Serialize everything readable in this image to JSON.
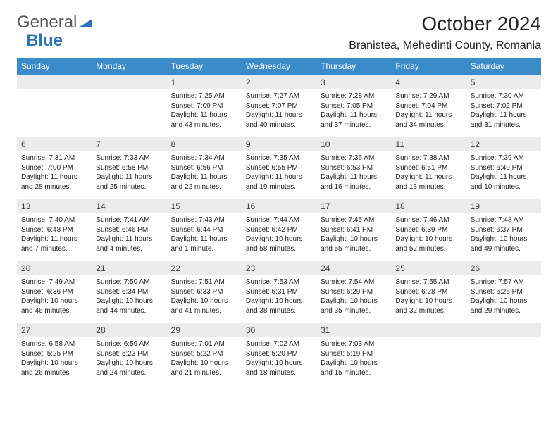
{
  "logo": {
    "part1": "General",
    "part2": "Blue"
  },
  "title": "October 2024",
  "location": "Branistea, Mehedinti County, Romania",
  "colors": {
    "header_bg": "#3b8bc8",
    "header_text": "#ffffff",
    "row_border": "#3b6f96",
    "daynum_bg": "#ececec",
    "logo_general": "#5a5a5a",
    "logo_blue": "#2b74b8",
    "text": "#222222"
  },
  "weekdays": [
    "Sunday",
    "Monday",
    "Tuesday",
    "Wednesday",
    "Thursday",
    "Friday",
    "Saturday"
  ],
  "weeks": [
    [
      null,
      null,
      {
        "d": "1",
        "sr": "7:25 AM",
        "ss": "7:09 PM",
        "dl": "11 hours and 43 minutes."
      },
      {
        "d": "2",
        "sr": "7:27 AM",
        "ss": "7:07 PM",
        "dl": "11 hours and 40 minutes."
      },
      {
        "d": "3",
        "sr": "7:28 AM",
        "ss": "7:05 PM",
        "dl": "11 hours and 37 minutes."
      },
      {
        "d": "4",
        "sr": "7:29 AM",
        "ss": "7:04 PM",
        "dl": "11 hours and 34 minutes."
      },
      {
        "d": "5",
        "sr": "7:30 AM",
        "ss": "7:02 PM",
        "dl": "11 hours and 31 minutes."
      }
    ],
    [
      {
        "d": "6",
        "sr": "7:31 AM",
        "ss": "7:00 PM",
        "dl": "11 hours and 28 minutes."
      },
      {
        "d": "7",
        "sr": "7:33 AM",
        "ss": "6:58 PM",
        "dl": "11 hours and 25 minutes."
      },
      {
        "d": "8",
        "sr": "7:34 AM",
        "ss": "6:56 PM",
        "dl": "11 hours and 22 minutes."
      },
      {
        "d": "9",
        "sr": "7:35 AM",
        "ss": "6:55 PM",
        "dl": "11 hours and 19 minutes."
      },
      {
        "d": "10",
        "sr": "7:36 AM",
        "ss": "6:53 PM",
        "dl": "11 hours and 16 minutes."
      },
      {
        "d": "11",
        "sr": "7:38 AM",
        "ss": "6:51 PM",
        "dl": "11 hours and 13 minutes."
      },
      {
        "d": "12",
        "sr": "7:39 AM",
        "ss": "6:49 PM",
        "dl": "11 hours and 10 minutes."
      }
    ],
    [
      {
        "d": "13",
        "sr": "7:40 AM",
        "ss": "6:48 PM",
        "dl": "11 hours and 7 minutes."
      },
      {
        "d": "14",
        "sr": "7:41 AM",
        "ss": "6:46 PM",
        "dl": "11 hours and 4 minutes."
      },
      {
        "d": "15",
        "sr": "7:43 AM",
        "ss": "6:44 PM",
        "dl": "11 hours and 1 minute."
      },
      {
        "d": "16",
        "sr": "7:44 AM",
        "ss": "6:42 PM",
        "dl": "10 hours and 58 minutes."
      },
      {
        "d": "17",
        "sr": "7:45 AM",
        "ss": "6:41 PM",
        "dl": "10 hours and 55 minutes."
      },
      {
        "d": "18",
        "sr": "7:46 AM",
        "ss": "6:39 PM",
        "dl": "10 hours and 52 minutes."
      },
      {
        "d": "19",
        "sr": "7:48 AM",
        "ss": "6:37 PM",
        "dl": "10 hours and 49 minutes."
      }
    ],
    [
      {
        "d": "20",
        "sr": "7:49 AM",
        "ss": "6:36 PM",
        "dl": "10 hours and 46 minutes."
      },
      {
        "d": "21",
        "sr": "7:50 AM",
        "ss": "6:34 PM",
        "dl": "10 hours and 44 minutes."
      },
      {
        "d": "22",
        "sr": "7:51 AM",
        "ss": "6:33 PM",
        "dl": "10 hours and 41 minutes."
      },
      {
        "d": "23",
        "sr": "7:53 AM",
        "ss": "6:31 PM",
        "dl": "10 hours and 38 minutes."
      },
      {
        "d": "24",
        "sr": "7:54 AM",
        "ss": "6:29 PM",
        "dl": "10 hours and 35 minutes."
      },
      {
        "d": "25",
        "sr": "7:55 AM",
        "ss": "6:28 PM",
        "dl": "10 hours and 32 minutes."
      },
      {
        "d": "26",
        "sr": "7:57 AM",
        "ss": "6:26 PM",
        "dl": "10 hours and 29 minutes."
      }
    ],
    [
      {
        "d": "27",
        "sr": "6:58 AM",
        "ss": "5:25 PM",
        "dl": "10 hours and 26 minutes."
      },
      {
        "d": "28",
        "sr": "6:59 AM",
        "ss": "5:23 PM",
        "dl": "10 hours and 24 minutes."
      },
      {
        "d": "29",
        "sr": "7:01 AM",
        "ss": "5:22 PM",
        "dl": "10 hours and 21 minutes."
      },
      {
        "d": "30",
        "sr": "7:02 AM",
        "ss": "5:20 PM",
        "dl": "10 hours and 18 minutes."
      },
      {
        "d": "31",
        "sr": "7:03 AM",
        "ss": "5:19 PM",
        "dl": "10 hours and 15 minutes."
      },
      null,
      null
    ]
  ],
  "labels": {
    "sunrise": "Sunrise: ",
    "sunset": "Sunset: ",
    "daylight": "Daylight: "
  }
}
